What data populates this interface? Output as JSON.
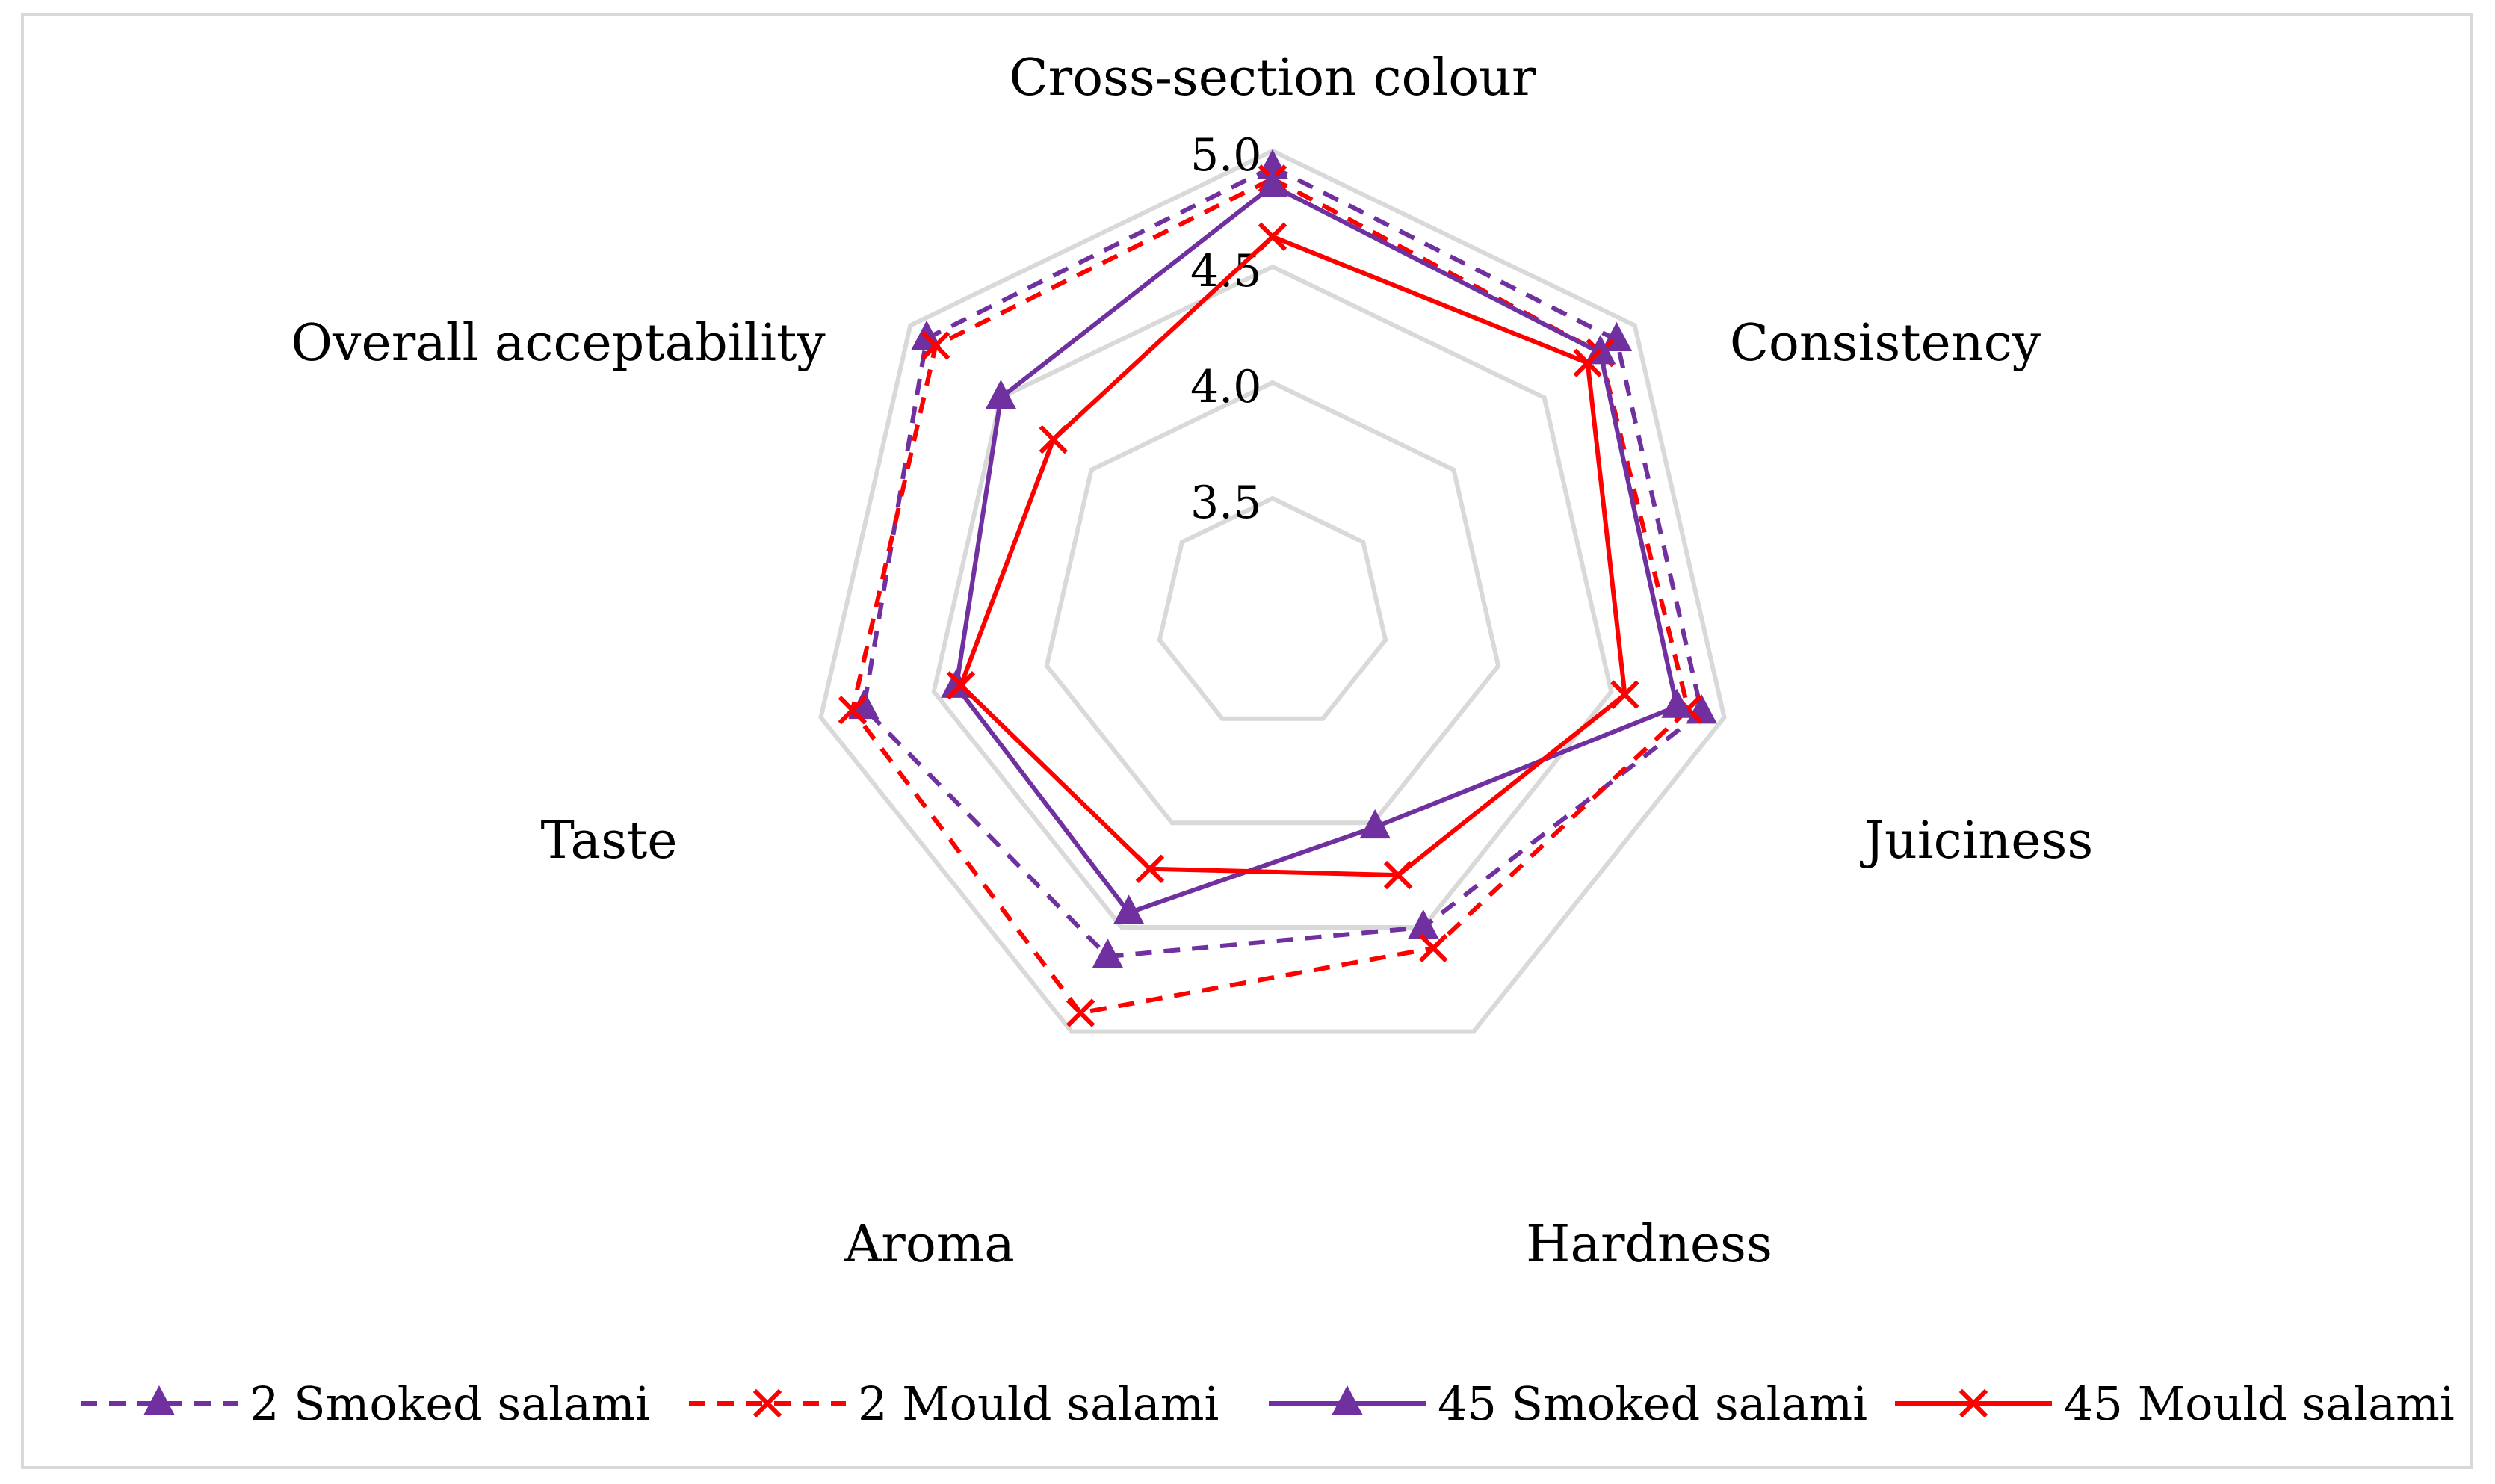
{
  "chart_data": {
    "type": "radar",
    "title": "",
    "axes": [
      "Cross-section colour",
      "Consistency",
      "Juiciness",
      "Hardness",
      "Aroma",
      "Taste",
      "Overall acceptability"
    ],
    "rlim": [
      3.0,
      5.0
    ],
    "ticks": [
      3.5,
      4.0,
      4.5,
      5.0
    ],
    "tick_labels": [
      "3.5",
      "4.0",
      "4.5",
      "5.0"
    ],
    "grid": true,
    "legend_position": "bottom",
    "series": [
      {
        "name": "2 Smoked salami",
        "color": "#7030a0",
        "dash": "dashed",
        "marker": "triangle",
        "values": [
          4.93,
          4.9,
          4.9,
          4.5,
          4.64,
          4.81,
          4.91
        ]
      },
      {
        "name": "2 Mould salami",
        "color": "#ff0000",
        "dash": "dashed",
        "marker": "x",
        "values": [
          4.88,
          4.81,
          4.84,
          4.6,
          4.91,
          4.86,
          4.86
        ]
      },
      {
        "name": "45 Smoked salami",
        "color": "#7030a0",
        "dash": "solid",
        "marker": "triangle",
        "values": [
          4.85,
          4.81,
          4.79,
          4.02,
          4.43,
          4.4,
          4.5
        ]
      },
      {
        "name": "45 Mould salami",
        "color": "#ff0000",
        "dash": "solid",
        "marker": "x",
        "values": [
          4.63,
          4.74,
          4.56,
          4.25,
          4.22,
          4.38,
          4.21
        ]
      }
    ]
  }
}
